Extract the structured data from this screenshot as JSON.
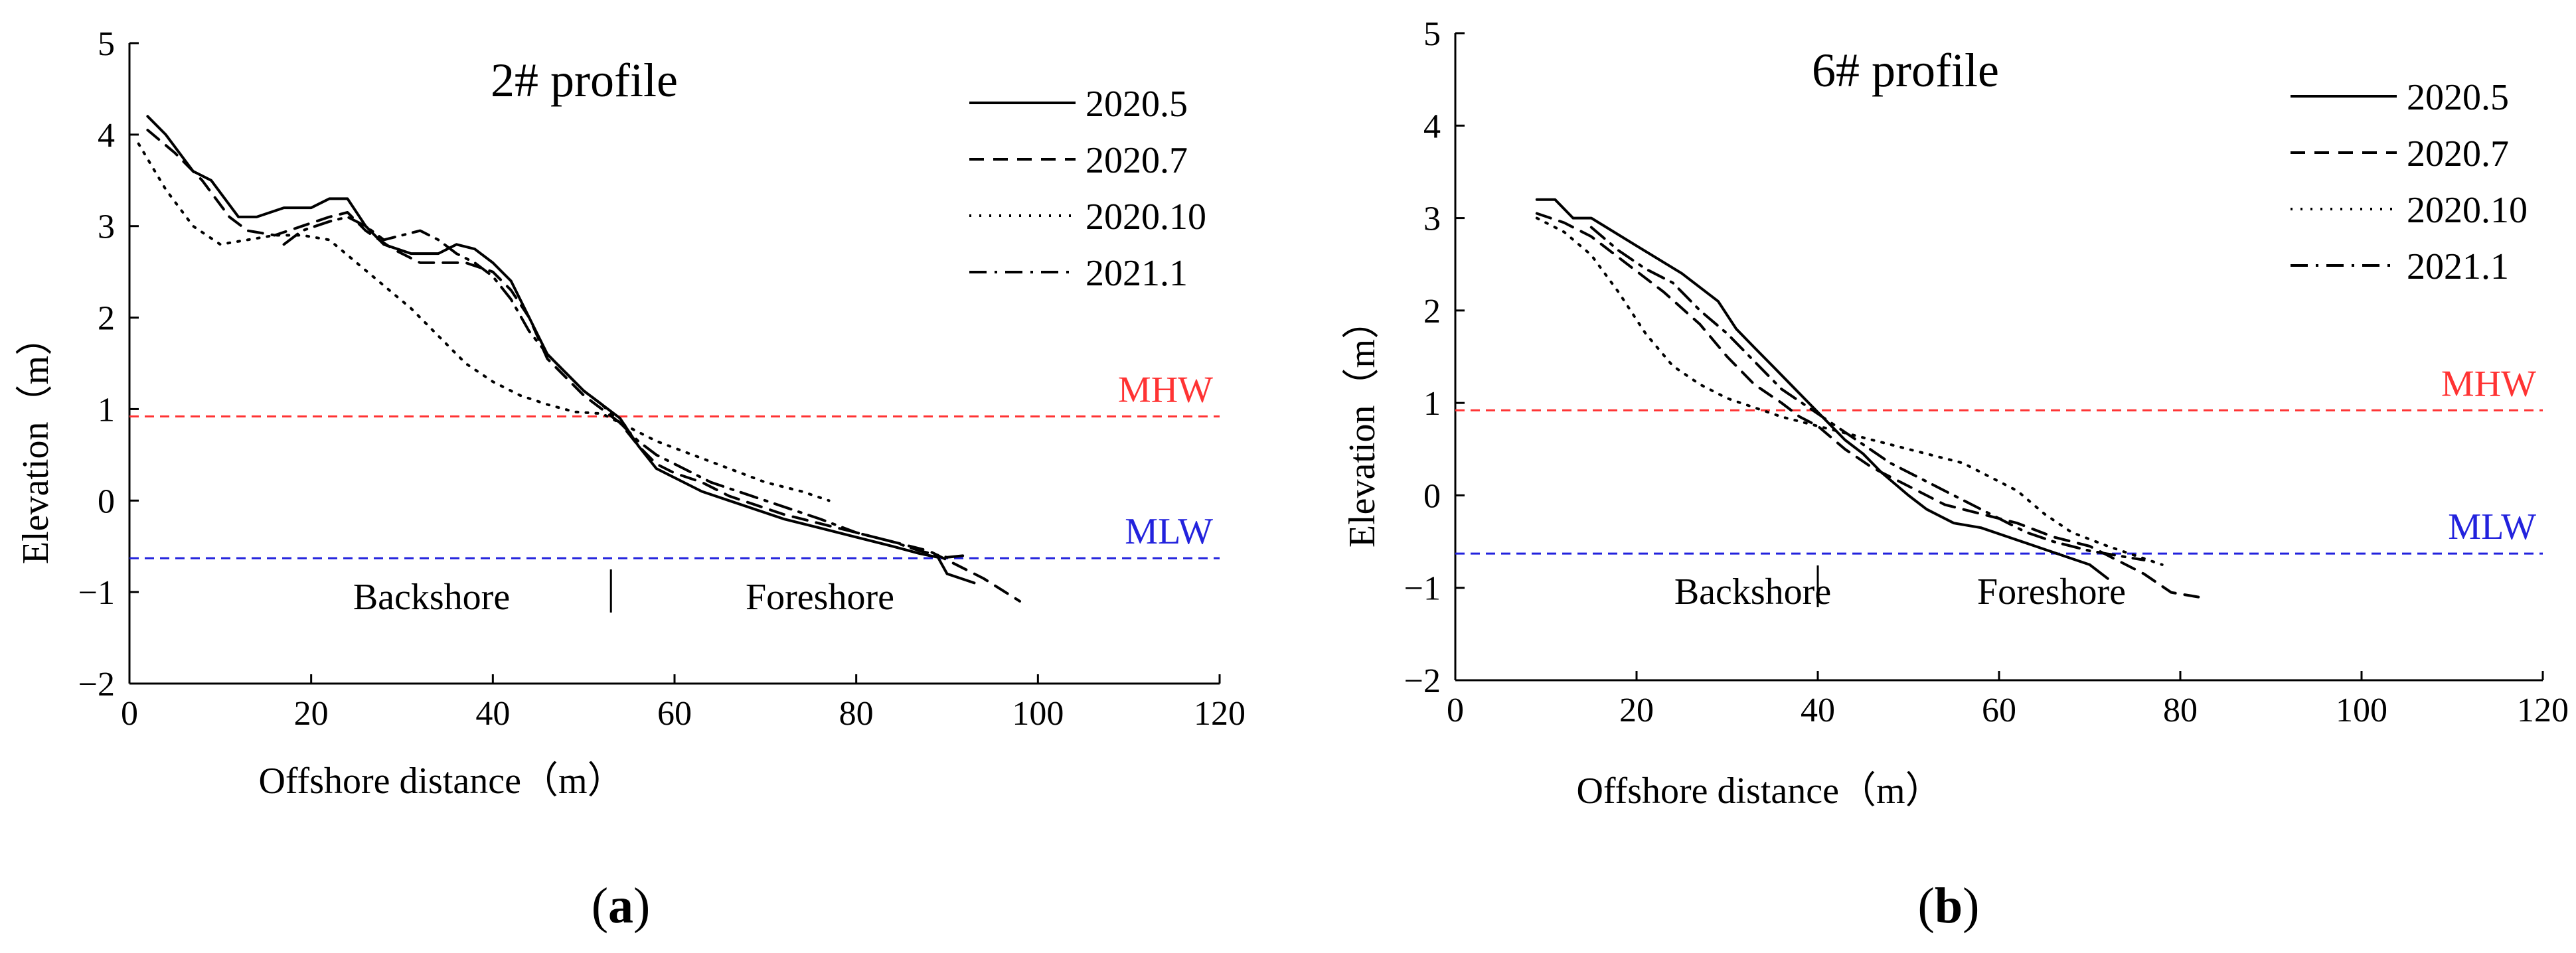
{
  "colors": {
    "mhw": "#ff3333",
    "mlw": "#2222dd",
    "axis": "#000000"
  },
  "chart_data": [
    {
      "type": "line",
      "caption": "a",
      "title": "2# profile",
      "xlabel": "Offshore distance（m）",
      "ylabel": "Elevation（m）",
      "xlim": [
        0,
        120
      ],
      "ylim": [
        -2,
        5
      ],
      "xticks": [
        "0",
        "20",
        "40",
        "60",
        "80",
        "100",
        "120"
      ],
      "yticks": [
        "5",
        "4",
        "3",
        "2",
        "1",
        "0",
        "−1",
        "−2"
      ],
      "reference_lines": [
        {
          "name": "MHW",
          "value": 0.92,
          "color": "#ff3333"
        },
        {
          "name": "MLW",
          "value": -0.63,
          "color": "#2222dd"
        }
      ],
      "zones": {
        "left": "Backshore",
        "right": "Foreshore",
        "divider_x": 53
      },
      "series": [
        {
          "name": "2020.5",
          "dash": "solid",
          "points": [
            [
              2,
              4.2
            ],
            [
              4,
              4.0
            ],
            [
              7,
              3.6
            ],
            [
              9,
              3.5
            ],
            [
              12,
              3.1
            ],
            [
              14,
              3.1
            ],
            [
              17,
              3.2
            ],
            [
              20,
              3.2
            ],
            [
              22,
              3.3
            ],
            [
              24,
              3.3
            ],
            [
              26,
              3.0
            ],
            [
              28,
              2.8
            ],
            [
              31,
              2.7
            ],
            [
              34,
              2.7
            ],
            [
              36,
              2.8
            ],
            [
              38,
              2.75
            ],
            [
              40,
              2.6
            ],
            [
              42,
              2.4
            ],
            [
              44,
              2.0
            ],
            [
              46,
              1.6
            ],
            [
              48,
              1.4
            ],
            [
              50,
              1.2
            ],
            [
              52,
              1.05
            ],
            [
              54,
              0.9
            ],
            [
              56,
              0.6
            ],
            [
              58,
              0.35
            ],
            [
              60,
              0.25
            ],
            [
              63,
              0.1
            ],
            [
              66,
              0.0
            ],
            [
              69,
              -0.1
            ],
            [
              72,
              -0.2
            ],
            [
              76,
              -0.3
            ],
            [
              80,
              -0.4
            ],
            [
              84,
              -0.5
            ],
            [
              87,
              -0.58
            ],
            [
              89,
              -0.62
            ],
            [
              90,
              -0.8
            ],
            [
              93,
              -0.9
            ]
          ]
        },
        {
          "name": "2020.7",
          "dash": "dash",
          "points": [
            [
              2,
              4.05
            ],
            [
              5,
              3.8
            ],
            [
              8,
              3.5
            ],
            [
              11,
              3.1
            ],
            [
              13,
              2.95
            ],
            [
              16,
              2.9
            ],
            [
              19,
              3.0
            ],
            [
              22,
              3.1
            ],
            [
              24,
              3.15
            ],
            [
              26,
              2.95
            ],
            [
              29,
              2.75
            ],
            [
              32,
              2.6
            ],
            [
              35,
              2.6
            ],
            [
              37,
              2.6
            ],
            [
              40,
              2.5
            ],
            [
              42,
              2.3
            ],
            [
              44,
              2.0
            ],
            [
              46,
              1.55
            ],
            [
              48,
              1.35
            ],
            [
              50,
              1.15
            ],
            [
              52,
              1.0
            ],
            [
              54,
              0.85
            ],
            [
              56,
              0.6
            ],
            [
              58,
              0.4
            ],
            [
              60,
              0.3
            ],
            [
              63,
              0.2
            ],
            [
              66,
              0.05
            ],
            [
              69,
              -0.05
            ],
            [
              72,
              -0.15
            ],
            [
              76,
              -0.25
            ],
            [
              80,
              -0.35
            ],
            [
              84,
              -0.45
            ],
            [
              88,
              -0.55
            ],
            [
              91,
              -0.7
            ],
            [
              94,
              -0.85
            ],
            [
              98,
              -1.1
            ]
          ]
        },
        {
          "name": "2020.10",
          "dash": "dot",
          "points": [
            [
              1,
              3.9
            ],
            [
              4,
              3.4
            ],
            [
              7,
              3.0
            ],
            [
              10,
              2.8
            ],
            [
              13,
              2.85
            ],
            [
              16,
              2.9
            ],
            [
              19,
              2.9
            ],
            [
              22,
              2.85
            ],
            [
              25,
              2.6
            ],
            [
              28,
              2.35
            ],
            [
              31,
              2.1
            ],
            [
              34,
              1.8
            ],
            [
              37,
              1.5
            ],
            [
              40,
              1.3
            ],
            [
              43,
              1.15
            ],
            [
              46,
              1.05
            ],
            [
              49,
              0.97
            ],
            [
              52,
              0.95
            ],
            [
              55,
              0.8
            ],
            [
              58,
              0.65
            ],
            [
              62,
              0.5
            ],
            [
              66,
              0.35
            ],
            [
              70,
              0.2
            ],
            [
              74,
              0.1
            ],
            [
              77,
              0.0
            ]
          ]
        },
        {
          "name": "2021.1",
          "dash": "dashdot",
          "points": [
            [
              17,
              2.8
            ],
            [
              19,
              2.95
            ],
            [
              22,
              3.05
            ],
            [
              24,
              3.1
            ],
            [
              26,
              3.0
            ],
            [
              28,
              2.85
            ],
            [
              30,
              2.9
            ],
            [
              32,
              2.95
            ],
            [
              34,
              2.85
            ],
            [
              36,
              2.7
            ],
            [
              38,
              2.6
            ],
            [
              40,
              2.45
            ],
            [
              42,
              2.2
            ],
            [
              44,
              1.85
            ],
            [
              46,
              1.6
            ],
            [
              48,
              1.4
            ],
            [
              50,
              1.2
            ],
            [
              52,
              1.05
            ],
            [
              54,
              0.85
            ],
            [
              56,
              0.65
            ],
            [
              58,
              0.5
            ],
            [
              61,
              0.35
            ],
            [
              64,
              0.2
            ],
            [
              67,
              0.1
            ],
            [
              70,
              0.0
            ],
            [
              73,
              -0.1
            ],
            [
              76,
              -0.2
            ],
            [
              80,
              -0.35
            ],
            [
              84,
              -0.45
            ],
            [
              87,
              -0.55
            ],
            [
              90,
              -0.62
            ],
            [
              92,
              -0.6
            ]
          ]
        }
      ]
    },
    {
      "type": "line",
      "caption": "b",
      "title": "6# profile",
      "xlabel": "Offshore distance（m）",
      "ylabel": "Elevation（m）",
      "xlim": [
        0,
        120
      ],
      "ylim": [
        -2,
        5
      ],
      "xticks": [
        "0",
        "20",
        "40",
        "60",
        "80",
        "100",
        "120"
      ],
      "yticks": [
        "5",
        "4",
        "3",
        "2",
        "1",
        "0",
        "−1",
        "−2"
      ],
      "reference_lines": [
        {
          "name": "MHW",
          "value": 0.92,
          "color": "#ff3333"
        },
        {
          "name": "MLW",
          "value": -0.63,
          "color": "#2222dd"
        }
      ],
      "zones": {
        "left": "Backshore",
        "right": "Foreshore",
        "divider_x": 40
      },
      "series": [
        {
          "name": "2020.5",
          "dash": "solid",
          "points": [
            [
              9,
              3.2
            ],
            [
              11,
              3.2
            ],
            [
              13,
              3.0
            ],
            [
              15,
              3.0
            ],
            [
              20,
              2.7
            ],
            [
              25,
              2.4
            ],
            [
              29,
              2.1
            ],
            [
              31,
              1.8
            ],
            [
              33,
              1.6
            ],
            [
              35,
              1.4
            ],
            [
              37,
              1.2
            ],
            [
              39,
              1.0
            ],
            [
              41,
              0.8
            ],
            [
              43,
              0.6
            ],
            [
              45,
              0.45
            ],
            [
              47,
              0.25
            ],
            [
              50,
              0.0
            ],
            [
              52,
              -0.15
            ],
            [
              55,
              -0.3
            ],
            [
              58,
              -0.35
            ],
            [
              61,
              -0.45
            ],
            [
              64,
              -0.55
            ],
            [
              67,
              -0.65
            ],
            [
              70,
              -0.75
            ],
            [
              72,
              -0.9
            ]
          ]
        },
        {
          "name": "2020.7",
          "dash": "dash",
          "points": [
            [
              9,
              3.05
            ],
            [
              12,
              2.95
            ],
            [
              15,
              2.8
            ],
            [
              19,
              2.5
            ],
            [
              23,
              2.2
            ],
            [
              27,
              1.85
            ],
            [
              30,
              1.5
            ],
            [
              33,
              1.2
            ],
            [
              36,
              1.0
            ],
            [
              38,
              0.85
            ],
            [
              40,
              0.75
            ],
            [
              43,
              0.5
            ],
            [
              46,
              0.3
            ],
            [
              50,
              0.1
            ],
            [
              54,
              -0.1
            ],
            [
              58,
              -0.2
            ],
            [
              62,
              -0.3
            ],
            [
              66,
              -0.45
            ],
            [
              70,
              -0.55
            ],
            [
              73,
              -0.7
            ],
            [
              76,
              -0.85
            ],
            [
              79,
              -1.05
            ],
            [
              82,
              -1.1
            ]
          ]
        },
        {
          "name": "2020.10",
          "dash": "dot",
          "points": [
            [
              9,
              3.0
            ],
            [
              12,
              2.85
            ],
            [
              15,
              2.6
            ],
            [
              18,
              2.2
            ],
            [
              21,
              1.75
            ],
            [
              24,
              1.4
            ],
            [
              27,
              1.2
            ],
            [
              30,
              1.05
            ],
            [
              33,
              0.95
            ],
            [
              36,
              0.85
            ],
            [
              40,
              0.75
            ],
            [
              44,
              0.65
            ],
            [
              48,
              0.55
            ],
            [
              52,
              0.45
            ],
            [
              56,
              0.35
            ],
            [
              59,
              0.2
            ],
            [
              62,
              0.05
            ],
            [
              65,
              -0.2
            ],
            [
              68,
              -0.4
            ],
            [
              72,
              -0.55
            ],
            [
              75,
              -0.65
            ],
            [
              78,
              -0.75
            ]
          ]
        },
        {
          "name": "2021.1",
          "dash": "dashdot",
          "points": [
            [
              15,
              2.9
            ],
            [
              18,
              2.65
            ],
            [
              21,
              2.45
            ],
            [
              24,
              2.3
            ],
            [
              27,
              2.0
            ],
            [
              30,
              1.75
            ],
            [
              33,
              1.45
            ],
            [
              36,
              1.15
            ],
            [
              39,
              0.95
            ],
            [
              42,
              0.75
            ],
            [
              45,
              0.55
            ],
            [
              48,
              0.35
            ],
            [
              51,
              0.2
            ],
            [
              54,
              0.05
            ],
            [
              57,
              -0.1
            ],
            [
              60,
              -0.25
            ],
            [
              63,
              -0.4
            ],
            [
              66,
              -0.5
            ],
            [
              70,
              -0.6
            ],
            [
              73,
              -0.65
            ],
            [
              76,
              -0.7
            ]
          ]
        }
      ]
    }
  ]
}
